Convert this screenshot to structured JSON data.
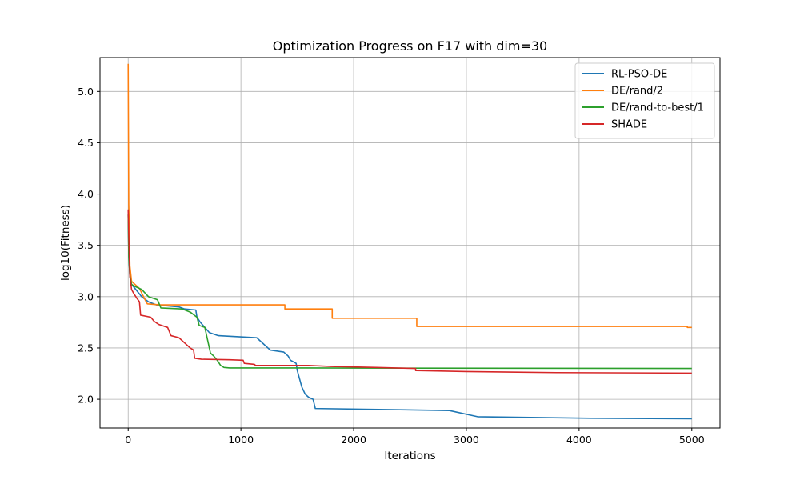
{
  "chart_data": {
    "type": "line",
    "title": "Optimization Progress on F17 with dim=30",
    "xlabel": "Iterations",
    "ylabel": "log10(Fitness)",
    "xlim": [
      -250,
      5250
    ],
    "ylim": [
      1.72,
      5.33
    ],
    "xticks": [
      0,
      1000,
      2000,
      3000,
      4000,
      5000
    ],
    "yticks": [
      2.0,
      2.5,
      3.0,
      3.5,
      4.0,
      4.5,
      5.0
    ],
    "xtick_labels": [
      "0",
      "1000",
      "2000",
      "3000",
      "4000",
      "5000"
    ],
    "ytick_labels": [
      "2.0",
      "2.5",
      "3.0",
      "3.5",
      "4.0",
      "4.5",
      "5.0"
    ],
    "grid": true,
    "legend_position": "top-right",
    "series": [
      {
        "name": "RL-PSO-DE",
        "color": "#1f77b4",
        "points": [
          [
            0,
            3.8
          ],
          [
            5,
            3.4
          ],
          [
            15,
            3.2
          ],
          [
            30,
            3.12
          ],
          [
            60,
            3.08
          ],
          [
            120,
            3.0
          ],
          [
            180,
            2.95
          ],
          [
            250,
            2.92
          ],
          [
            450,
            2.9
          ],
          [
            500,
            2.88
          ],
          [
            600,
            2.87
          ],
          [
            610,
            2.8
          ],
          [
            640,
            2.75
          ],
          [
            680,
            2.7
          ],
          [
            720,
            2.65
          ],
          [
            800,
            2.62
          ],
          [
            1140,
            2.6
          ],
          [
            1260,
            2.48
          ],
          [
            1380,
            2.46
          ],
          [
            1420,
            2.42
          ],
          [
            1440,
            2.38
          ],
          [
            1490,
            2.35
          ],
          [
            1500,
            2.28
          ],
          [
            1520,
            2.2
          ],
          [
            1540,
            2.12
          ],
          [
            1570,
            2.05
          ],
          [
            1600,
            2.02
          ],
          [
            1640,
            2.0
          ],
          [
            1660,
            1.91
          ],
          [
            2280,
            1.9
          ],
          [
            2850,
            1.89
          ],
          [
            3100,
            1.83
          ],
          [
            4100,
            1.815
          ],
          [
            5000,
            1.81
          ]
        ]
      },
      {
        "name": "DE/rand/2",
        "color": "#ff7f0e",
        "points": [
          [
            0,
            5.27
          ],
          [
            5,
            3.9
          ],
          [
            15,
            3.3
          ],
          [
            30,
            3.15
          ],
          [
            60,
            3.12
          ],
          [
            100,
            3.08
          ],
          [
            150,
            2.97
          ],
          [
            170,
            2.93
          ],
          [
            280,
            2.92
          ],
          [
            1390,
            2.92
          ],
          [
            1390,
            2.88
          ],
          [
            1810,
            2.88
          ],
          [
            1810,
            2.79
          ],
          [
            2560,
            2.79
          ],
          [
            2560,
            2.71
          ],
          [
            4960,
            2.71
          ],
          [
            4960,
            2.7
          ],
          [
            5000,
            2.7
          ]
        ]
      },
      {
        "name": "DE/rand-to-best/1",
        "color": "#2ca02c",
        "points": [
          [
            0,
            3.8
          ],
          [
            5,
            3.4
          ],
          [
            15,
            3.2
          ],
          [
            30,
            3.12
          ],
          [
            60,
            3.1
          ],
          [
            120,
            3.07
          ],
          [
            180,
            3.0
          ],
          [
            260,
            2.97
          ],
          [
            290,
            2.89
          ],
          [
            480,
            2.88
          ],
          [
            550,
            2.85
          ],
          [
            610,
            2.8
          ],
          [
            630,
            2.72
          ],
          [
            680,
            2.7
          ],
          [
            700,
            2.6
          ],
          [
            710,
            2.55
          ],
          [
            730,
            2.45
          ],
          [
            760,
            2.42
          ],
          [
            790,
            2.38
          ],
          [
            820,
            2.33
          ],
          [
            850,
            2.31
          ],
          [
            900,
            2.305
          ],
          [
            1500,
            2.305
          ],
          [
            5000,
            2.3
          ]
        ]
      },
      {
        "name": "SHADE",
        "color": "#d62728",
        "points": [
          [
            0,
            3.85
          ],
          [
            5,
            3.6
          ],
          [
            15,
            3.2
          ],
          [
            30,
            3.07
          ],
          [
            50,
            3.03
          ],
          [
            80,
            2.98
          ],
          [
            100,
            2.95
          ],
          [
            110,
            2.82
          ],
          [
            200,
            2.8
          ],
          [
            230,
            2.76
          ],
          [
            270,
            2.73
          ],
          [
            350,
            2.7
          ],
          [
            380,
            2.62
          ],
          [
            450,
            2.6
          ],
          [
            500,
            2.55
          ],
          [
            550,
            2.5
          ],
          [
            580,
            2.48
          ],
          [
            590,
            2.4
          ],
          [
            650,
            2.39
          ],
          [
            900,
            2.385
          ],
          [
            1020,
            2.38
          ],
          [
            1030,
            2.35
          ],
          [
            1120,
            2.34
          ],
          [
            1130,
            2.33
          ],
          [
            1600,
            2.33
          ],
          [
            1800,
            2.32
          ],
          [
            2200,
            2.31
          ],
          [
            2550,
            2.3
          ],
          [
            2550,
            2.28
          ],
          [
            3000,
            2.27
          ],
          [
            3800,
            2.26
          ],
          [
            5000,
            2.255
          ]
        ]
      }
    ]
  }
}
